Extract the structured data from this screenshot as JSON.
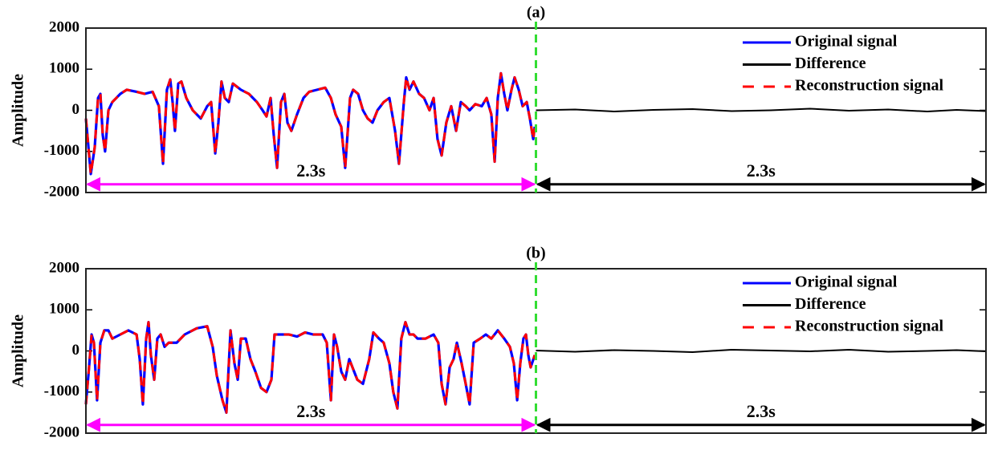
{
  "chart_data": [
    {
      "type": "line",
      "title": "(a)",
      "ylabel": "Amplitude",
      "ylim": [
        -2000,
        2000
      ],
      "yticks": [
        -2000,
        -1000,
        0,
        1000,
        2000
      ],
      "xlim": [
        0,
        4.6
      ],
      "legend": "upper right",
      "series": [
        {
          "name": "Original signal",
          "color": "#0000ff",
          "linestyle": "solid",
          "x": [
            0,
            0.025,
            0.045,
            0.062,
            0.074,
            0.086,
            0.098,
            0.115,
            0.135,
            0.176,
            0.209,
            0.259,
            0.3,
            0.341,
            0.373,
            0.394,
            0.414,
            0.431,
            0.443,
            0.455,
            0.472,
            0.488,
            0.513,
            0.546,
            0.587,
            0.62,
            0.64,
            0.661,
            0.677,
            0.693,
            0.71,
            0.73,
            0.751,
            0.792,
            0.833,
            0.874,
            0.903,
            0.923,
            0.944,
            0.96,
            0.977,
            0.997,
            1.014,
            1.03,
            1.05,
            1.079,
            1.112,
            1.141,
            1.182,
            1.223,
            1.252,
            1.276,
            1.305,
            1.325,
            1.35,
            1.366,
            1.391,
            1.416,
            1.44,
            1.465,
            1.49,
            1.522,
            1.551,
            1.58,
            1.6,
            1.625,
            1.637,
            1.654,
            1.674,
            1.703,
            1.728,
            1.756,
            1.777,
            1.797,
            1.818,
            1.842,
            1.867,
            1.892,
            1.916,
            1.941,
            1.961,
            1.99,
            2.023,
            2.048,
            2.072,
            2.089,
            2.105,
            2.121,
            2.138,
            2.154,
            2.175,
            2.191,
            2.212,
            2.232,
            2.253,
            2.269,
            2.286,
            2.294
          ],
          "values": [
            -200,
            -1550,
            -900,
            300,
            400,
            -600,
            -1000,
            0,
            200,
            400,
            500,
            450,
            400,
            450,
            100,
            -1300,
            500,
            750,
            200,
            -500,
            650,
            700,
            300,
            0,
            -200,
            100,
            200,
            -1050,
            -300,
            700,
            300,
            200,
            650,
            500,
            400,
            200,
            0,
            -150,
            300,
            -600,
            -1400,
            200,
            400,
            -300,
            -500,
            -100,
            300,
            450,
            500,
            550,
            300,
            -100,
            -400,
            -1400,
            300,
            500,
            400,
            0,
            -200,
            -300,
            0,
            200,
            300,
            -500,
            -1300,
            200,
            800,
            500,
            700,
            400,
            300,
            0,
            300,
            -700,
            -1100,
            -300,
            100,
            -500,
            200,
            100,
            0,
            150,
            100,
            300,
            -100,
            -1250,
            300,
            900,
            400,
            0,
            500,
            800,
            500,
            100,
            200,
            -200,
            -700,
            -400
          ]
        },
        {
          "name": "Difference",
          "color": "#000000",
          "linestyle": "solid",
          "x": [
            2.3,
            2.5,
            2.7,
            2.9,
            3.1,
            3.3,
            3.5,
            3.7,
            3.9,
            4.1,
            4.3,
            4.45,
            4.6
          ],
          "values": [
            0,
            20,
            -30,
            10,
            30,
            -20,
            0,
            40,
            -10,
            20,
            -30,
            10,
            -20
          ]
        },
        {
          "name": "Reconstruction signal",
          "color": "#ff0000",
          "linestyle": "dashed",
          "x": [
            0,
            0.025,
            0.045,
            0.062,
            0.074,
            0.086,
            0.098,
            0.115,
            0.135,
            0.176,
            0.209,
            0.259,
            0.3,
            0.341,
            0.373,
            0.394,
            0.414,
            0.431,
            0.443,
            0.455,
            0.472,
            0.488,
            0.513,
            0.546,
            0.587,
            0.62,
            0.64,
            0.661,
            0.677,
            0.693,
            0.71,
            0.73,
            0.751,
            0.792,
            0.833,
            0.874,
            0.903,
            0.923,
            0.944,
            0.96,
            0.977,
            0.997,
            1.014,
            1.03,
            1.05,
            1.079,
            1.112,
            1.141,
            1.182,
            1.223,
            1.252,
            1.276,
            1.305,
            1.325,
            1.35,
            1.366,
            1.391,
            1.416,
            1.44,
            1.465,
            1.49,
            1.522,
            1.551,
            1.58,
            1.6,
            1.625,
            1.637,
            1.654,
            1.674,
            1.703,
            1.728,
            1.756,
            1.777,
            1.797,
            1.818,
            1.842,
            1.867,
            1.892,
            1.916,
            1.941,
            1.961,
            1.99,
            2.023,
            2.048,
            2.072,
            2.089,
            2.105,
            2.121,
            2.138,
            2.154,
            2.175,
            2.191,
            2.212,
            2.232,
            2.253,
            2.269,
            2.286,
            2.294
          ],
          "values": [
            -200,
            -1550,
            -900,
            300,
            400,
            -600,
            -1000,
            0,
            200,
            400,
            500,
            450,
            400,
            450,
            100,
            -1300,
            500,
            750,
            200,
            -500,
            650,
            700,
            300,
            0,
            -200,
            100,
            200,
            -1050,
            -300,
            700,
            300,
            200,
            650,
            500,
            400,
            200,
            0,
            -150,
            300,
            -600,
            -1400,
            200,
            400,
            -300,
            -500,
            -100,
            300,
            450,
            500,
            550,
            300,
            -100,
            -400,
            -1400,
            300,
            500,
            400,
            0,
            -200,
            -300,
            0,
            200,
            300,
            -500,
            -1300,
            200,
            800,
            500,
            700,
            400,
            300,
            0,
            300,
            -700,
            -1100,
            -300,
            100,
            -500,
            200,
            100,
            0,
            150,
            100,
            300,
            -100,
            -1250,
            300,
            900,
            400,
            0,
            500,
            800,
            500,
            100,
            200,
            -200,
            -700,
            -400
          ]
        }
      ],
      "vline": {
        "x": 2.3,
        "color": "#33dd33"
      },
      "annotations": [
        {
          "text": "2.3s",
          "x": [
            0,
            2.3
          ],
          "y": -1800,
          "color": "#ff00ff"
        },
        {
          "text": "2.3s",
          "x": [
            2.3,
            4.6
          ],
          "y": -1800,
          "color": "#000000"
        }
      ]
    },
    {
      "type": "line",
      "title": "(b)",
      "ylabel": "Amplitude",
      "ylim": [
        -2000,
        2000
      ],
      "yticks": [
        -2000,
        -1000,
        0,
        1000,
        2000
      ],
      "xlim": [
        0,
        4.6
      ],
      "legend": "upper right",
      "series": [
        {
          "name": "Original signal",
          "color": "#0000ff",
          "linestyle": "solid",
          "x": [
            0,
            0.016,
            0.029,
            0.041,
            0.057,
            0.074,
            0.094,
            0.115,
            0.135,
            0.176,
            0.217,
            0.259,
            0.275,
            0.291,
            0.308,
            0.32,
            0.332,
            0.349,
            0.365,
            0.382,
            0.402,
            0.423,
            0.464,
            0.505,
            0.566,
            0.62,
            0.648,
            0.669,
            0.698,
            0.718,
            0.739,
            0.759,
            0.776,
            0.792,
            0.817,
            0.841,
            0.866,
            0.895,
            0.923,
            0.948,
            0.964,
            0.997,
            1.038,
            1.079,
            1.12,
            1.161,
            1.186,
            1.21,
            1.231,
            1.252,
            1.268,
            1.284,
            1.305,
            1.325,
            1.346,
            1.387,
            1.416,
            1.448,
            1.469,
            1.498,
            1.522,
            1.551,
            1.571,
            1.592,
            1.612,
            1.633,
            1.654,
            1.674,
            1.695,
            1.736,
            1.777,
            1.801,
            1.818,
            1.838,
            1.859,
            1.879,
            1.896,
            1.92,
            1.941,
            1.961,
            1.982,
            2.015,
            2.044,
            2.072,
            2.105,
            2.138,
            2.167,
            2.187,
            2.204,
            2.22,
            2.236,
            2.249,
            2.261,
            2.273,
            2.294
          ],
          "values": [
            -1300,
            -400,
            400,
            200,
            -1200,
            200,
            500,
            500,
            300,
            400,
            500,
            400,
            -200,
            -1300,
            300,
            700,
            -100,
            -700,
            300,
            400,
            100,
            200,
            200,
            400,
            550,
            600,
            100,
            -600,
            -1200,
            -1500,
            500,
            -300,
            -700,
            300,
            300,
            -200,
            -500,
            -900,
            -1000,
            -700,
            400,
            400,
            400,
            350,
            450,
            400,
            400,
            400,
            200,
            -1200,
            400,
            100,
            -500,
            -700,
            -200,
            -700,
            -800,
            -200,
            450,
            300,
            200,
            -300,
            -1000,
            -1400,
            300,
            700,
            400,
            400,
            300,
            300,
            400,
            200,
            -800,
            -1300,
            -400,
            -200,
            200,
            -300,
            -800,
            -1300,
            200,
            300,
            400,
            300,
            500,
            300,
            100,
            -300,
            -1200,
            -300,
            300,
            400,
            -100,
            -400,
            -100
          ]
        },
        {
          "name": "Difference",
          "color": "#000000",
          "linestyle": "solid",
          "x": [
            2.3,
            2.5,
            2.7,
            2.9,
            3.1,
            3.3,
            3.5,
            3.7,
            3.9,
            4.1,
            4.3,
            4.45,
            4.6
          ],
          "values": [
            10,
            -20,
            20,
            0,
            -30,
            30,
            10,
            -10,
            30,
            -20,
            0,
            20,
            -10
          ]
        },
        {
          "name": "Reconstruction signal",
          "color": "#ff0000",
          "linestyle": "dashed",
          "x": [
            0,
            0.016,
            0.029,
            0.041,
            0.057,
            0.074,
            0.094,
            0.115,
            0.135,
            0.176,
            0.217,
            0.259,
            0.275,
            0.291,
            0.308,
            0.32,
            0.332,
            0.349,
            0.365,
            0.382,
            0.402,
            0.423,
            0.464,
            0.505,
            0.566,
            0.62,
            0.648,
            0.669,
            0.698,
            0.718,
            0.739,
            0.759,
            0.776,
            0.792,
            0.817,
            0.841,
            0.866,
            0.895,
            0.923,
            0.948,
            0.964,
            0.997,
            1.038,
            1.079,
            1.12,
            1.161,
            1.186,
            1.21,
            1.231,
            1.252,
            1.268,
            1.284,
            1.305,
            1.325,
            1.346,
            1.387,
            1.416,
            1.448,
            1.469,
            1.498,
            1.522,
            1.551,
            1.571,
            1.592,
            1.612,
            1.633,
            1.654,
            1.674,
            1.695,
            1.736,
            1.777,
            1.801,
            1.818,
            1.838,
            1.859,
            1.879,
            1.896,
            1.92,
            1.941,
            1.961,
            1.982,
            2.015,
            2.044,
            2.072,
            2.105,
            2.138,
            2.167,
            2.187,
            2.204,
            2.22,
            2.236,
            2.249,
            2.261,
            2.273,
            2.294
          ],
          "values": [
            -1300,
            -400,
            400,
            200,
            -1200,
            200,
            500,
            500,
            300,
            400,
            500,
            400,
            -200,
            -1300,
            300,
            700,
            -100,
            -700,
            300,
            400,
            100,
            200,
            200,
            400,
            550,
            600,
            100,
            -600,
            -1200,
            -1500,
            500,
            -300,
            -700,
            300,
            300,
            -200,
            -500,
            -900,
            -1000,
            -700,
            400,
            400,
            400,
            350,
            450,
            400,
            400,
            400,
            200,
            -1200,
            400,
            100,
            -500,
            -700,
            -200,
            -700,
            -800,
            -200,
            450,
            300,
            200,
            -300,
            -1000,
            -1400,
            300,
            700,
            400,
            400,
            300,
            300,
            400,
            200,
            -800,
            -1300,
            -400,
            -200,
            200,
            -300,
            -800,
            -1300,
            200,
            300,
            400,
            300,
            500,
            300,
            100,
            -300,
            -1200,
            -300,
            300,
            400,
            -100,
            -400,
            -100
          ]
        }
      ],
      "vline": {
        "x": 2.3,
        "color": "#33dd33"
      },
      "annotations": [
        {
          "text": "2.3s",
          "x": [
            0,
            2.3
          ],
          "y": -1800,
          "color": "#ff00ff"
        },
        {
          "text": "2.3s",
          "x": [
            2.3,
            4.6
          ],
          "y": -1800,
          "color": "#000000"
        }
      ]
    }
  ]
}
